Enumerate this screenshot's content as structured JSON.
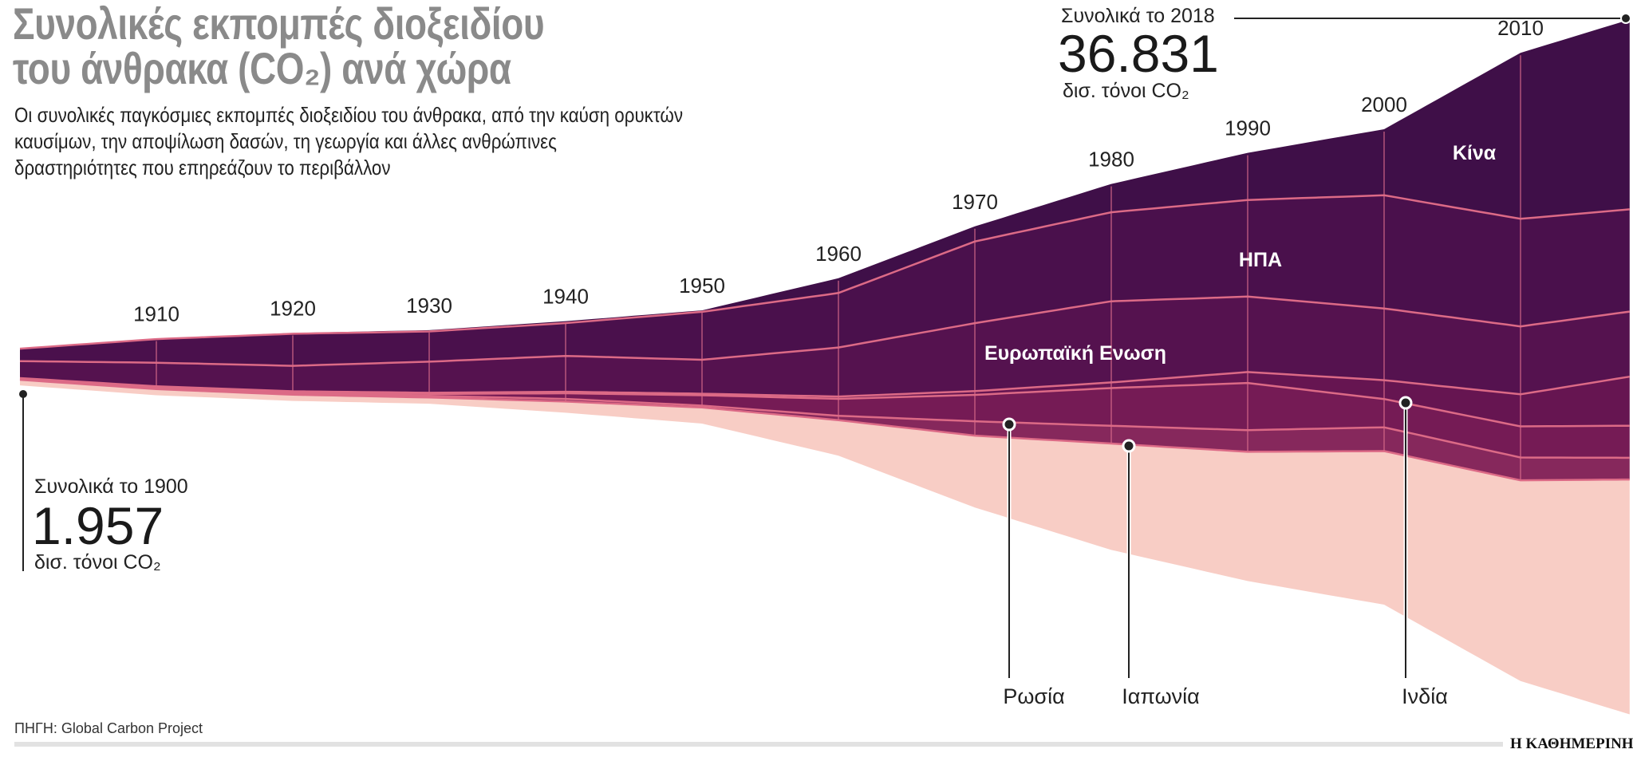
{
  "header": {
    "title_line1": "Συνολικές εκπομπές διοξειδίου",
    "title_line2": "του άνθρακα (CO₂) ανά χώρα",
    "subtitle_lines": [
      "Οι συνολικές παγκόσμιες εκπομπές διοξειδίου του άνθρακα, από την καύση ορυκτών",
      "καυσίμων, την αποψίλωση δασών, τη γεωργία και άλλες ανθρώπινες",
      "δραστηριότητες που επηρεάζουν το περιβάλλον"
    ]
  },
  "annotations": {
    "start_label": "Συνολικά το 1900",
    "start_value": "1.957",
    "start_unit": "δισ. τόνοι CO₂",
    "end_label": "Συνολικά το 2018",
    "end_value": "36.831",
    "end_unit": "δισ. τόνοι CO₂"
  },
  "labels": {
    "china": "Κίνα",
    "usa": "ΗΠΑ",
    "eu": "Ευρωπαϊκή Ενωση",
    "russia": "Ρωσία",
    "japan": "Ιαπωνία",
    "india": "Ινδία"
  },
  "footer": {
    "source": "ΠΗΓΗ: Global Carbon Project",
    "brand": "Η ΚΑΘΗΜΕΡΙΝΗ"
  },
  "colors": {
    "china": "#3f0f48",
    "usa": "#4a104c",
    "eu": "#55124f",
    "india": "#661551",
    "russia": "#751b55",
    "japan": "#86285c",
    "rest": "#f8cdc5",
    "separator": "#dc6a86"
  },
  "chart_data": {
    "type": "area",
    "subtype": "streamgraph",
    "x": [
      1900,
      1910,
      1920,
      1930,
      1940,
      1950,
      1960,
      1970,
      1980,
      1990,
      2000,
      2010,
      2018
    ],
    "x_tick_labels": [
      "1910",
      "1920",
      "1930",
      "1940",
      "1950",
      "1960",
      "1970",
      "1980",
      "1990",
      "2000",
      "2010"
    ],
    "unit": "δισ. τόνοι CO₂",
    "grid": false,
    "series": [
      {
        "key": "china",
        "name": "Κίνα",
        "values": [
          10,
          25,
          40,
          70,
          100,
          80,
          780,
          800,
          1500,
          2500,
          3500,
          8800,
          10060
        ]
      },
      {
        "key": "usa",
        "name": "ΗΠΑ",
        "values": [
          660,
          1250,
          1700,
          1600,
          1740,
          2540,
          2890,
          4330,
          4720,
          5120,
          6000,
          5700,
          5420
        ]
      },
      {
        "key": "eu",
        "name": "Ευρωπαϊκή Ενωση",
        "values": [
          900,
          1250,
          1350,
          1650,
          1900,
          1800,
          2600,
          3600,
          4300,
          4000,
          3800,
          3600,
          3450
        ]
      },
      {
        "key": "india",
        "name": "Ινδία",
        "values": [
          20,
          30,
          50,
          60,
          80,
          80,
          120,
          200,
          300,
          580,
          1000,
          1700,
          2600
        ]
      },
      {
        "key": "russia",
        "name": "Ρωσία",
        "values": [
          50,
          80,
          60,
          100,
          300,
          550,
          900,
          1400,
          2000,
          2500,
          1500,
          1650,
          1700
        ]
      },
      {
        "key": "japan",
        "name": "Ιαπωνία",
        "values": [
          20,
          40,
          70,
          90,
          140,
          100,
          230,
          760,
          940,
          1150,
          1260,
          1210,
          1150
        ]
      },
      {
        "key": "rest",
        "values": [
          297,
          325,
          330,
          330,
          590,
          850,
          1880,
          3810,
          5640,
          6850,
          8140,
          10640,
          12451
        ]
      }
    ],
    "totals": {
      "1900": 1957,
      "2018": 36831
    }
  }
}
